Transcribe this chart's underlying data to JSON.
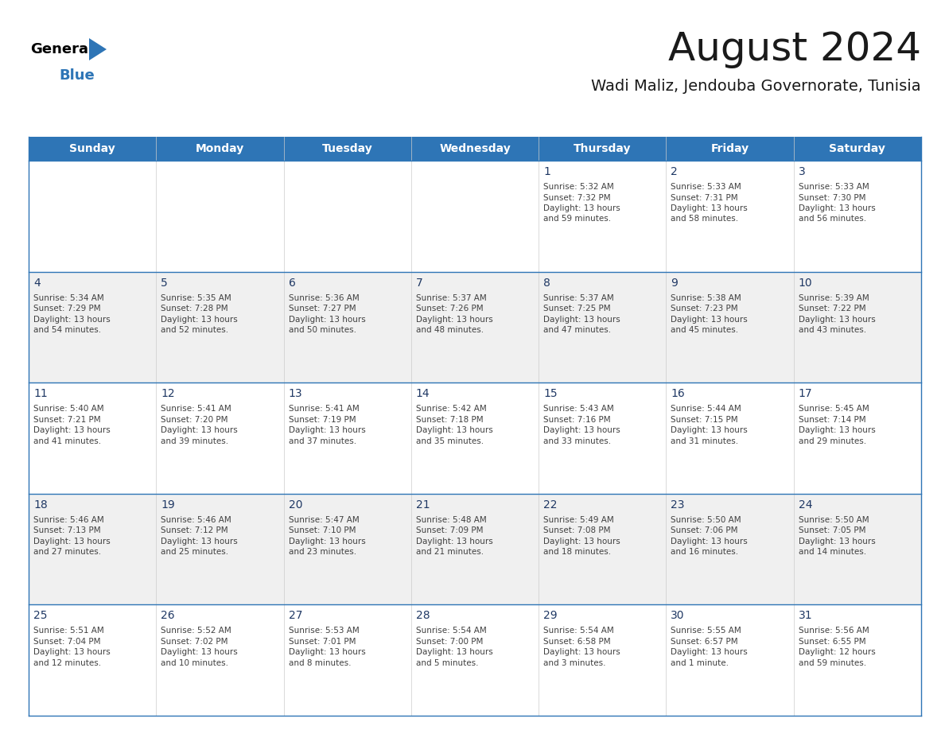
{
  "title": "August 2024",
  "subtitle": "Wadi Maliz, Jendouba Governorate, Tunisia",
  "header_bg": "#2E75B6",
  "header_text_color": "#FFFFFF",
  "days_of_week": [
    "Sunday",
    "Monday",
    "Tuesday",
    "Wednesday",
    "Thursday",
    "Friday",
    "Saturday"
  ],
  "cell_bg_light": "#F0F0F0",
  "cell_bg_white": "#FFFFFF",
  "day_num_color": "#1F3864",
  "info_text_color": "#404040",
  "border_color": "#2E75B6",
  "logo_color_black": "#000000",
  "logo_color_blue": "#2E75B6",
  "weeks": [
    [
      {
        "date": "",
        "sunrise": "",
        "sunset": "",
        "daylight": ""
      },
      {
        "date": "",
        "sunrise": "",
        "sunset": "",
        "daylight": ""
      },
      {
        "date": "",
        "sunrise": "",
        "sunset": "",
        "daylight": ""
      },
      {
        "date": "",
        "sunrise": "",
        "sunset": "",
        "daylight": ""
      },
      {
        "date": "1",
        "sunrise": "5:32 AM",
        "sunset": "7:32 PM",
        "daylight_line1": "Daylight: 13 hours",
        "daylight_line2": "and 59 minutes."
      },
      {
        "date": "2",
        "sunrise": "5:33 AM",
        "sunset": "7:31 PM",
        "daylight_line1": "Daylight: 13 hours",
        "daylight_line2": "and 58 minutes."
      },
      {
        "date": "3",
        "sunrise": "5:33 AM",
        "sunset": "7:30 PM",
        "daylight_line1": "Daylight: 13 hours",
        "daylight_line2": "and 56 minutes."
      }
    ],
    [
      {
        "date": "4",
        "sunrise": "5:34 AM",
        "sunset": "7:29 PM",
        "daylight_line1": "Daylight: 13 hours",
        "daylight_line2": "and 54 minutes."
      },
      {
        "date": "5",
        "sunrise": "5:35 AM",
        "sunset": "7:28 PM",
        "daylight_line1": "Daylight: 13 hours",
        "daylight_line2": "and 52 minutes."
      },
      {
        "date": "6",
        "sunrise": "5:36 AM",
        "sunset": "7:27 PM",
        "daylight_line1": "Daylight: 13 hours",
        "daylight_line2": "and 50 minutes."
      },
      {
        "date": "7",
        "sunrise": "5:37 AM",
        "sunset": "7:26 PM",
        "daylight_line1": "Daylight: 13 hours",
        "daylight_line2": "and 48 minutes."
      },
      {
        "date": "8",
        "sunrise": "5:37 AM",
        "sunset": "7:25 PM",
        "daylight_line1": "Daylight: 13 hours",
        "daylight_line2": "and 47 minutes."
      },
      {
        "date": "9",
        "sunrise": "5:38 AM",
        "sunset": "7:23 PM",
        "daylight_line1": "Daylight: 13 hours",
        "daylight_line2": "and 45 minutes."
      },
      {
        "date": "10",
        "sunrise": "5:39 AM",
        "sunset": "7:22 PM",
        "daylight_line1": "Daylight: 13 hours",
        "daylight_line2": "and 43 minutes."
      }
    ],
    [
      {
        "date": "11",
        "sunrise": "5:40 AM",
        "sunset": "7:21 PM",
        "daylight_line1": "Daylight: 13 hours",
        "daylight_line2": "and 41 minutes."
      },
      {
        "date": "12",
        "sunrise": "5:41 AM",
        "sunset": "7:20 PM",
        "daylight_line1": "Daylight: 13 hours",
        "daylight_line2": "and 39 minutes."
      },
      {
        "date": "13",
        "sunrise": "5:41 AM",
        "sunset": "7:19 PM",
        "daylight_line1": "Daylight: 13 hours",
        "daylight_line2": "and 37 minutes."
      },
      {
        "date": "14",
        "sunrise": "5:42 AM",
        "sunset": "7:18 PM",
        "daylight_line1": "Daylight: 13 hours",
        "daylight_line2": "and 35 minutes."
      },
      {
        "date": "15",
        "sunrise": "5:43 AM",
        "sunset": "7:16 PM",
        "daylight_line1": "Daylight: 13 hours",
        "daylight_line2": "and 33 minutes."
      },
      {
        "date": "16",
        "sunrise": "5:44 AM",
        "sunset": "7:15 PM",
        "daylight_line1": "Daylight: 13 hours",
        "daylight_line2": "and 31 minutes."
      },
      {
        "date": "17",
        "sunrise": "5:45 AM",
        "sunset": "7:14 PM",
        "daylight_line1": "Daylight: 13 hours",
        "daylight_line2": "and 29 minutes."
      }
    ],
    [
      {
        "date": "18",
        "sunrise": "5:46 AM",
        "sunset": "7:13 PM",
        "daylight_line1": "Daylight: 13 hours",
        "daylight_line2": "and 27 minutes."
      },
      {
        "date": "19",
        "sunrise": "5:46 AM",
        "sunset": "7:12 PM",
        "daylight_line1": "Daylight: 13 hours",
        "daylight_line2": "and 25 minutes."
      },
      {
        "date": "20",
        "sunrise": "5:47 AM",
        "sunset": "7:10 PM",
        "daylight_line1": "Daylight: 13 hours",
        "daylight_line2": "and 23 minutes."
      },
      {
        "date": "21",
        "sunrise": "5:48 AM",
        "sunset": "7:09 PM",
        "daylight_line1": "Daylight: 13 hours",
        "daylight_line2": "and 21 minutes."
      },
      {
        "date": "22",
        "sunrise": "5:49 AM",
        "sunset": "7:08 PM",
        "daylight_line1": "Daylight: 13 hours",
        "daylight_line2": "and 18 minutes."
      },
      {
        "date": "23",
        "sunrise": "5:50 AM",
        "sunset": "7:06 PM",
        "daylight_line1": "Daylight: 13 hours",
        "daylight_line2": "and 16 minutes."
      },
      {
        "date": "24",
        "sunrise": "5:50 AM",
        "sunset": "7:05 PM",
        "daylight_line1": "Daylight: 13 hours",
        "daylight_line2": "and 14 minutes."
      }
    ],
    [
      {
        "date": "25",
        "sunrise": "5:51 AM",
        "sunset": "7:04 PM",
        "daylight_line1": "Daylight: 13 hours",
        "daylight_line2": "and 12 minutes."
      },
      {
        "date": "26",
        "sunrise": "5:52 AM",
        "sunset": "7:02 PM",
        "daylight_line1": "Daylight: 13 hours",
        "daylight_line2": "and 10 minutes."
      },
      {
        "date": "27",
        "sunrise": "5:53 AM",
        "sunset": "7:01 PM",
        "daylight_line1": "Daylight: 13 hours",
        "daylight_line2": "and 8 minutes."
      },
      {
        "date": "28",
        "sunrise": "5:54 AM",
        "sunset": "7:00 PM",
        "daylight_line1": "Daylight: 13 hours",
        "daylight_line2": "and 5 minutes."
      },
      {
        "date": "29",
        "sunrise": "5:54 AM",
        "sunset": "6:58 PM",
        "daylight_line1": "Daylight: 13 hours",
        "daylight_line2": "and 3 minutes."
      },
      {
        "date": "30",
        "sunrise": "5:55 AM",
        "sunset": "6:57 PM",
        "daylight_line1": "Daylight: 13 hours",
        "daylight_line2": "and 1 minute."
      },
      {
        "date": "31",
        "sunrise": "5:56 AM",
        "sunset": "6:55 PM",
        "daylight_line1": "Daylight: 12 hours",
        "daylight_line2": "and 59 minutes."
      }
    ]
  ]
}
